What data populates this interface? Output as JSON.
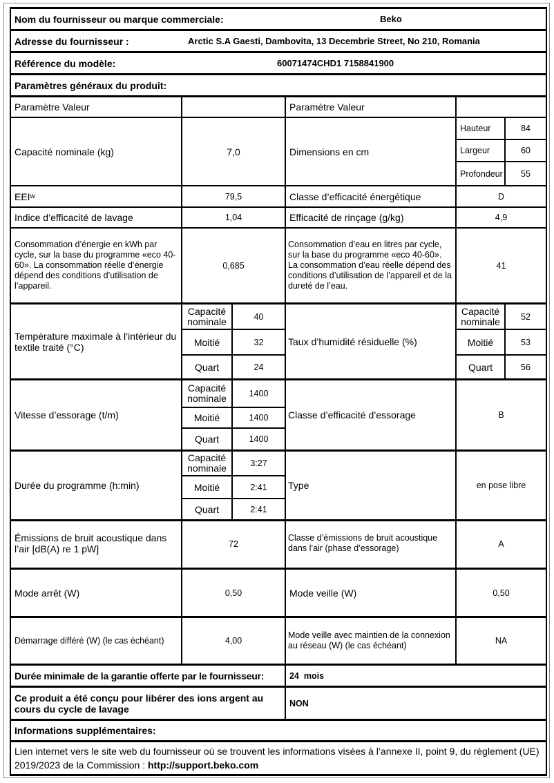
{
  "supplier": {
    "label": "Nom du fournisseur ou marque commerciale:",
    "value": "Beko"
  },
  "address": {
    "label": "Adresse du fournisseur :",
    "value": "Arctic S.A  Gaesti, Dambovita, 13 Decembrie Street, No 210, Romania"
  },
  "model": {
    "label": "Référence du modèle:",
    "value": "60071474CHD1 7158841900"
  },
  "general": {
    "title": "Paramètres généraux du produit:",
    "header_left": "Paramètre Valeur",
    "header_right": "Paramètre Valeur"
  },
  "capacity": {
    "label": "Capacité nominale (kg)",
    "value": "7,0"
  },
  "dimensions": {
    "label": "Dimensions en cm",
    "rows": [
      {
        "label": "Hauteur",
        "value": "84"
      },
      {
        "label": "Largeur",
        "value": "60"
      },
      {
        "label": "Profondeur",
        "value": "55"
      }
    ]
  },
  "eei": {
    "label": "EEI",
    "sub": "w",
    "value": "79,5"
  },
  "energy_class": {
    "label": "Classe d’efficacité énergétique",
    "value": "D"
  },
  "wash_index": {
    "label": "Indice d’efficacité de lavage",
    "value": "1,04"
  },
  "rinse": {
    "label": "Efficacité de rinçage (g/kg)",
    "value": "4,9"
  },
  "energy_consumption": {
    "label": "Consommation d’énergie en kWh par cycle, sur la base du programme «eco 40-60». La consommation réelle d’énergie dépend des conditions d’utilisation de l’appareil.",
    "value": "0,685"
  },
  "water_consumption": {
    "label": "Consommation d’eau en litres par cycle, sur la base du programme «eco 40-60». La consommation d’eau réelle dépend des conditions d’utilisation de l’appareil et de la dureté de l’eau.",
    "value": "41"
  },
  "temperature": {
    "label": "Température maximale à l’intérieur du textile traité (°C)",
    "rows": [
      {
        "label": "Capacité nominale",
        "value": "40"
      },
      {
        "label": "Moitié",
        "value": "32"
      },
      {
        "label": "Quart",
        "value": "24"
      }
    ]
  },
  "humidity": {
    "label": "Taux d’humidité résiduelle (%)",
    "rows": [
      {
        "label": "Capacité nominale",
        "value": "52"
      },
      {
        "label": "Moitié",
        "value": "53"
      },
      {
        "label": "Quart",
        "value": "56"
      }
    ]
  },
  "spin_speed": {
    "label": "Vitesse d’essorage (t/m)",
    "rows": [
      {
        "label": "Capacité nominale",
        "value": "1400"
      },
      {
        "label": "Moitié",
        "value": "1400"
      },
      {
        "label": "Quart",
        "value": "1400"
      }
    ]
  },
  "spin_class": {
    "label": "Classe d’efficacité d’essorage",
    "value": "B"
  },
  "duration": {
    "label": "Durée du programme (h:min)",
    "rows": [
      {
        "label": "Capacité nominale",
        "value": "3:27"
      },
      {
        "label": "Moitié",
        "value": "2:41"
      },
      {
        "label": "Quart",
        "value": "2:41"
      }
    ]
  },
  "type": {
    "label": "Type",
    "value": "en pose libre"
  },
  "noise": {
    "label": "Émissions de bruit acoustique dans l’air [dB(A) re 1 pW]",
    "value": "72"
  },
  "noise_class": {
    "label": "Classe d’émissions de bruit acoustique dans l’air (phase d’essorage)",
    "value": "A"
  },
  "off_mode": {
    "label": "Mode arrêt (W)",
    "value": "0,50"
  },
  "standby": {
    "label": "Mode veille (W)",
    "value": "0,50"
  },
  "delay_start": {
    "label": "Démarrage différé (W) (le cas échéant)",
    "value": "4,00"
  },
  "networked_standby": {
    "label": "Mode veille avec maintien de la connexion au réseau (W) (le cas échéant)",
    "value": "NA"
  },
  "warranty": {
    "label": "Durée minimale de la garantie offerte par le fournisseur:",
    "value": "24  mois"
  },
  "silver_ions": {
    "label": "Ce produit a été conçu pour libérer des ions argent au cours du cycle de lavage",
    "value": "NON"
  },
  "additional": {
    "title": "Informations supplémentaires:",
    "text": "Lien internet vers le site web du fournisseur où se trouvent les informations visées à l’annexe II, point 9, du règlement (UE) 2019/2023 de la Commission : ",
    "link": "http://support.beko.com"
  }
}
